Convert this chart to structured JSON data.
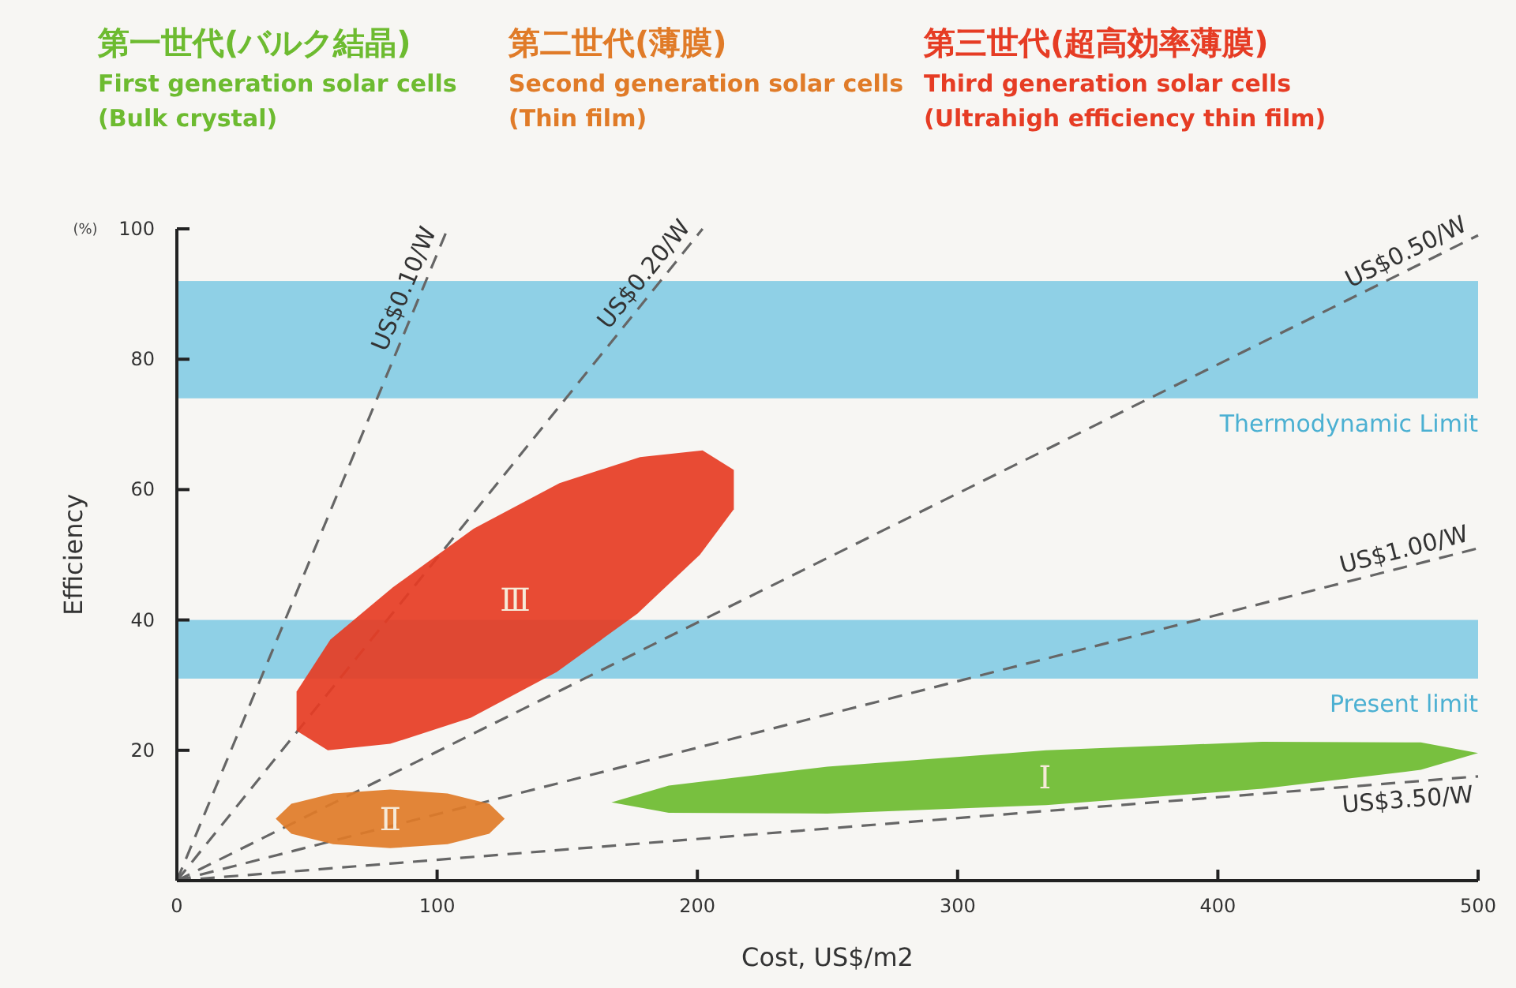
{
  "chart_data": {
    "type": "area",
    "xlabel": "Cost, US$/m2",
    "ylabel": "Efficiency",
    "annotations": [
      "第一世代(バルク結晶)",
      "First generation solar cells",
      "(Bulk crystal)",
      "第二世代(薄膜)",
      "Second generation solar cells",
      "(Thin film)",
      "第三世代(超高効率薄膜)",
      "Third generation solar cells",
      "(Ultrahigh efficiency thin film)",
      "(%)"
    ],
    "xlim": [
      0,
      500
    ],
    "xticks": [
      0,
      100,
      200,
      300,
      400,
      500
    ],
    "ylim": [
      0,
      100
    ],
    "yticks": [
      20,
      40,
      60,
      80,
      100
    ],
    "bands": [
      {
        "axis": "y",
        "from": 74,
        "to": 92,
        "label": "Thermodynamic Limit",
        "color": "#8fd0e6"
      },
      {
        "axis": "y",
        "from": 31,
        "to": 40,
        "label": "Present limit",
        "color": "#8fd0e6"
      }
    ],
    "series": [
      {
        "name": "Ⅰ",
        "color": "#6dbb30",
        "x": [
          500,
          478,
          417,
          334,
          250,
          189,
          167,
          189,
          250,
          334,
          417,
          478
        ],
        "values": [
          19.6,
          21.2,
          21.3,
          20,
          17.5,
          14.6,
          12,
          10.4,
          10.3,
          11.6,
          14.1,
          17
        ]
      },
      {
        "name": "Ⅱ",
        "color": "#e07b28",
        "x": [
          126,
          120,
          104,
          82,
          60,
          44,
          38,
          44,
          60,
          82,
          104,
          120
        ],
        "values": [
          9.5,
          11.8,
          13.4,
          14,
          13.4,
          11.8,
          9.5,
          7.2,
          5.6,
          5,
          5.6,
          7.2
        ]
      },
      {
        "name": "Ⅲ",
        "color": "#e63c24",
        "x": [
          214,
          214,
          201,
          177,
          146,
          113,
          82,
          58,
          46,
          46,
          59,
          83,
          114,
          147,
          178,
          202
        ],
        "values": [
          63,
          57,
          50,
          41,
          32,
          25,
          21,
          20,
          23,
          29,
          37,
          45,
          54,
          61,
          65,
          66
        ]
      },
      {
        "name": "US$0.10/W",
        "type": "line",
        "color": "#666666",
        "line_style": "dashed",
        "x": [
          0,
          104
        ],
        "values": [
          0,
          100
        ]
      },
      {
        "name": "US$0.20/W",
        "type": "line",
        "color": "#666666",
        "line_style": "dashed",
        "x": [
          0,
          202
        ],
        "values": [
          0,
          100
        ]
      },
      {
        "name": "US$0.50/W",
        "type": "line",
        "color": "#666666",
        "line_style": "dashed",
        "x": [
          0,
          500
        ],
        "values": [
          0,
          99
        ]
      },
      {
        "name": "US$1.00/W",
        "type": "line",
        "color": "#666666",
        "line_style": "dashed",
        "x": [
          0,
          500
        ],
        "values": [
          0,
          51
        ]
      },
      {
        "name": "US$3.50/W",
        "type": "line",
        "color": "#666666",
        "line_style": "dashed",
        "x": [
          0,
          500
        ],
        "values": [
          0,
          16
        ]
      }
    ]
  }
}
